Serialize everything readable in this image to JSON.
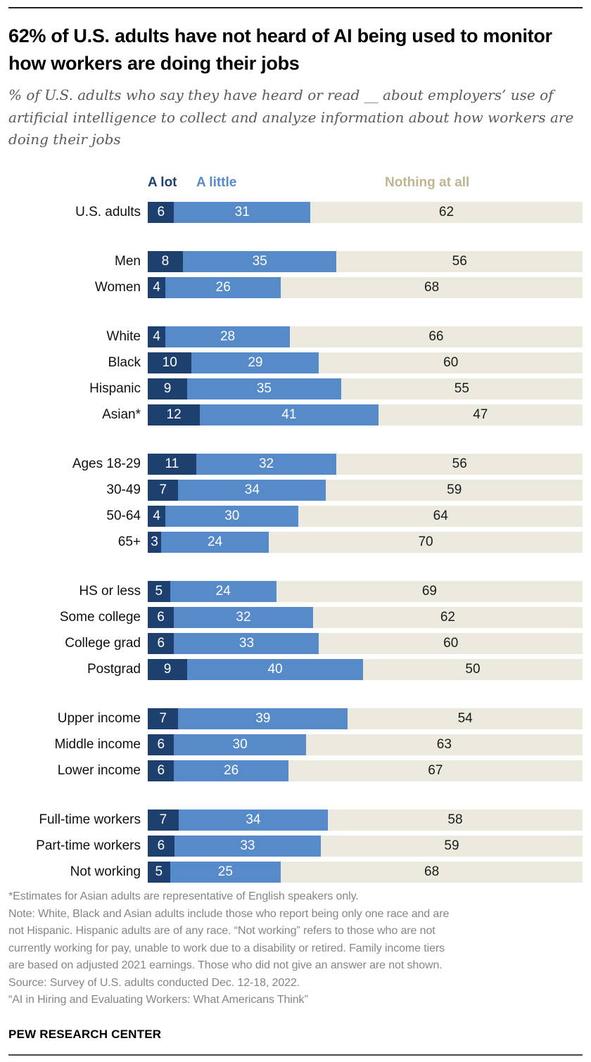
{
  "header": {
    "title": "62% of U.S. adults have not heard of AI being used to monitor how workers are doing their jobs",
    "subtitle": "% of U.S. adults who say they have heard or read __ about employers’ use of artificial intelligence to collect and analyze information about how workers are doing their jobs"
  },
  "chart_data": {
    "type": "bar",
    "variant": "horizontal-stacked",
    "unit": "percent",
    "axis_range": [
      0,
      100
    ],
    "grid": false,
    "legend_position": "top",
    "series": [
      "A lot",
      "A little",
      "Nothing at all"
    ],
    "colors": [
      "#1e406e",
      "#568ac9",
      "#ece9df"
    ],
    "legend_text_colors": [
      "#1e406e",
      "#568ac9",
      "#bfb591"
    ],
    "value_text_colors": [
      "#ffffff",
      "#ffffff",
      "#1a1a1a"
    ],
    "groups": [
      {
        "rows": [
          {
            "label": "U.S. adults",
            "values": [
              6,
              31,
              62
            ]
          }
        ]
      },
      {
        "rows": [
          {
            "label": "Men",
            "values": [
              8,
              35,
              56
            ]
          },
          {
            "label": "Women",
            "values": [
              4,
              26,
              68
            ]
          }
        ]
      },
      {
        "rows": [
          {
            "label": "White",
            "values": [
              4,
              28,
              66
            ]
          },
          {
            "label": "Black",
            "values": [
              10,
              29,
              60
            ]
          },
          {
            "label": "Hispanic",
            "values": [
              9,
              35,
              55
            ]
          },
          {
            "label": "Asian*",
            "values": [
              12,
              41,
              47
            ]
          }
        ]
      },
      {
        "rows": [
          {
            "label": "Ages 18-29",
            "values": [
              11,
              32,
              56
            ]
          },
          {
            "label": "30-49",
            "values": [
              7,
              34,
              59
            ]
          },
          {
            "label": "50-64",
            "values": [
              4,
              30,
              64
            ]
          },
          {
            "label": "65+",
            "values": [
              3,
              24,
              70
            ]
          }
        ]
      },
      {
        "rows": [
          {
            "label": "HS or less",
            "values": [
              5,
              24,
              69
            ]
          },
          {
            "label": "Some college",
            "values": [
              6,
              32,
              62
            ]
          },
          {
            "label": "College grad",
            "values": [
              6,
              33,
              60
            ]
          },
          {
            "label": "Postgrad",
            "values": [
              9,
              40,
              50
            ]
          }
        ]
      },
      {
        "rows": [
          {
            "label": "Upper income",
            "values": [
              7,
              39,
              54
            ]
          },
          {
            "label": "Middle income",
            "values": [
              6,
              30,
              63
            ]
          },
          {
            "label": "Lower income",
            "values": [
              6,
              26,
              67
            ]
          }
        ]
      },
      {
        "rows": [
          {
            "label": "Full-time workers",
            "values": [
              7,
              34,
              58
            ]
          },
          {
            "label": "Part-time workers",
            "values": [
              6,
              33,
              59
            ]
          },
          {
            "label": "Not working",
            "values": [
              5,
              25,
              68
            ]
          }
        ]
      }
    ]
  },
  "notes": {
    "lines": [
      "*Estimates for Asian adults are representative of English speakers only.",
      "Note: White, Black and Asian adults include those who report being only one race and are",
      "not Hispanic. Hispanic adults are of any race. “Not working” refers to those who are not",
      "currently working for pay, unable to work due to a disability or retired. Family income tiers",
      "are based on adjusted 2021 earnings. Those who did not give an answer are not shown.",
      "Source: Survey of U.S. adults conducted Dec. 12-18, 2022.",
      "“AI in Hiring and Evaluating Workers: What Americans Think”"
    ]
  },
  "footer": {
    "brand": "PEW RESEARCH CENTER"
  }
}
